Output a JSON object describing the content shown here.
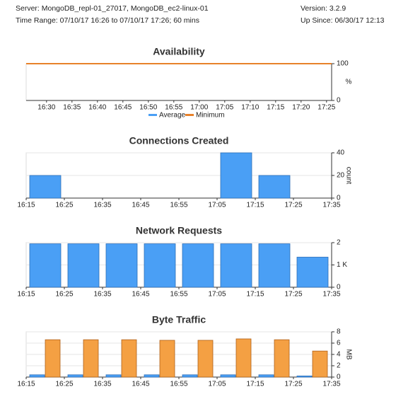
{
  "header": {
    "server": "Server: MongoDB_repl-01_27017, MongoDB_ec2-linux-01",
    "version": "Version: 3.2.9",
    "time_range": "Time Range: 07/10/17 16:26 to 07/10/17 17:26; 60 mins",
    "up_since": "Up Since: 06/30/17 12:13"
  },
  "chart_data": [
    {
      "type": "line",
      "title": "Availability",
      "y_label": "%",
      "x": [
        "16:26",
        "17:26"
      ],
      "xlim": [
        "16:26",
        "17:26"
      ],
      "xticks": [
        "16:30",
        "16:35",
        "16:40",
        "16:45",
        "16:50",
        "16:55",
        "17:00",
        "17:05",
        "17:10",
        "17:15",
        "17:20",
        "17:25"
      ],
      "series": [
        {
          "name": "Average",
          "color": "#4a9ff5",
          "values": [
            100,
            100
          ]
        },
        {
          "name": "Minimum",
          "color": "#e8822a",
          "values": [
            100,
            100
          ]
        }
      ],
      "ylim": [
        0,
        100
      ],
      "yticks": [
        0,
        100
      ],
      "grid": false,
      "legend": "bottom"
    },
    {
      "type": "histogram",
      "title": "Connections Created",
      "y_label": "count",
      "bins": [
        "16:15",
        "16:25",
        "16:35",
        "16:45",
        "16:55",
        "17:05",
        "17:15",
        "17:25",
        "17:35"
      ],
      "series": [
        {
          "color": "#4a9ff5",
          "values": [
            20,
            0,
            0,
            0,
            0,
            40,
            20,
            0
          ]
        }
      ],
      "ylim": [
        0,
        40
      ],
      "yticks": [
        0,
        20,
        40
      ],
      "grid": true
    },
    {
      "type": "histogram",
      "title": "Network Requests",
      "bins": [
        "16:15",
        "16:25",
        "16:35",
        "16:45",
        "16:55",
        "17:05",
        "17:15",
        "17:25",
        "17:35"
      ],
      "series": [
        {
          "color": "#4a9ff5",
          "values": [
            1950,
            1950,
            1950,
            1950,
            1950,
            1950,
            1950,
            1350
          ]
        }
      ],
      "ylim": [
        0,
        2000
      ],
      "yticks": [
        0,
        {
          "value": 1000,
          "label": "1 K"
        },
        {
          "value": 2000,
          "label": "2"
        }
      ],
      "grid": true
    },
    {
      "type": "histogram",
      "title": "Byte Traffic",
      "y_label": "MB",
      "bins": [
        "16:15",
        "16:25",
        "16:35",
        "16:45",
        "16:55",
        "17:05",
        "17:15",
        "17:25",
        "17:35"
      ],
      "series": [
        {
          "color": "#4a9ff5",
          "values": [
            0.4,
            0.4,
            0.4,
            0.4,
            0.4,
            0.4,
            0.4,
            0.2
          ]
        },
        {
          "color": "#f4a043",
          "values": [
            6.6,
            6.6,
            6.6,
            6.5,
            6.5,
            6.75,
            6.6,
            4.6
          ]
        }
      ],
      "ylim": [
        0,
        8
      ],
      "yticks": [
        0,
        2,
        4,
        6,
        8
      ],
      "grid": true
    }
  ]
}
